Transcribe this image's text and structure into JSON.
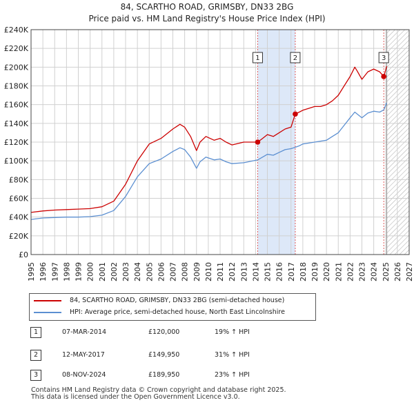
{
  "title_line1": "84, SCARTHO ROAD, GRIMSBY, DN33 2BG",
  "title_line2": "Price paid vs. HM Land Registry's House Price Index (HPI)",
  "legend": {
    "property_label": "84, SCARTHO ROAD, GRIMSBY, DN33 2BG (semi-detached house)",
    "hpi_label": "HPI: Average price, semi-detached house, North East Lincolnshire"
  },
  "sales": [
    {
      "num": "1",
      "date": "07-MAR-2014",
      "price": "£120,000",
      "hpi": "19% ↑ HPI"
    },
    {
      "num": "2",
      "date": "12-MAY-2017",
      "price": "£149,950",
      "hpi": "31% ↑ HPI"
    },
    {
      "num": "3",
      "date": "08-NOV-2024",
      "price": "£189,950",
      "hpi": "23% ↑ HPI"
    }
  ],
  "footer_line1": "Contains HM Land Registry data © Crown copyright and database right 2025.",
  "footer_line2": "This data is licensed under the Open Government Licence v3.0.",
  "colors": {
    "property": "#cc0000",
    "hpi": "#5b8fd1",
    "sale_band": "#dde8f8",
    "grid": "#d0d0d0"
  },
  "chart_data": {
    "type": "line",
    "title": "84, SCARTHO ROAD, GRIMSBY, DN33 2BG — Price paid vs. HM Land Registry's House Price Index (HPI)",
    "xlim": [
      1995,
      2027
    ],
    "ylim": [
      0,
      240000
    ],
    "x_ticks": [
      1995,
      1996,
      1997,
      1998,
      1999,
      2000,
      2001,
      2002,
      2003,
      2004,
      2005,
      2006,
      2007,
      2008,
      2009,
      2010,
      2011,
      2012,
      2013,
      2014,
      2015,
      2016,
      2017,
      2018,
      2019,
      2020,
      2021,
      2022,
      2023,
      2024,
      2025,
      2026,
      2027
    ],
    "y_ticks": [
      0,
      20000,
      40000,
      60000,
      80000,
      100000,
      120000,
      140000,
      160000,
      180000,
      200000,
      220000,
      240000
    ],
    "y_tick_labels": [
      "£0",
      "£20K",
      "£40K",
      "£60K",
      "£80K",
      "£100K",
      "£120K",
      "£140K",
      "£160K",
      "£180K",
      "£200K",
      "£220K",
      "£240K"
    ],
    "forecast_start": 2025.1,
    "sale_band": [
      2014.18,
      2017.36
    ],
    "markers": [
      {
        "label": "1",
        "x": 2014.18,
        "y": 120000
      },
      {
        "label": "2",
        "x": 2017.36,
        "y": 149950
      },
      {
        "label": "3",
        "x": 2024.85,
        "y": 189950
      }
    ],
    "series": [
      {
        "name": "84, SCARTHO ROAD, GRIMSBY, DN33 2BG (semi-detached house)",
        "x": [
          1995,
          1996,
          1997,
          1998,
          1999,
          2000,
          2001,
          2002,
          2003,
          2004,
          2005,
          2006,
          2007,
          2007.6,
          2008,
          2008.5,
          2009,
          2009.3,
          2009.8,
          2010.5,
          2011,
          2011.5,
          2012,
          2013,
          2014.18,
          2014.6,
          2015,
          2015.5,
          2016,
          2016.5,
          2017,
          2017.36,
          2017.7,
          2018,
          2018.5,
          2019,
          2019.5,
          2020,
          2020.5,
          2021,
          2021.5,
          2022,
          2022.4,
          2022.6,
          2023,
          2023.5,
          2024,
          2024.5,
          2024.85,
          2025.1
        ],
        "y": [
          45000,
          46500,
          47500,
          48000,
          48500,
          49000,
          51000,
          57000,
          75000,
          100000,
          118000,
          124000,
          134000,
          139000,
          136000,
          126000,
          111000,
          120000,
          126000,
          122000,
          124000,
          120000,
          117000,
          120000,
          120000,
          124000,
          128000,
          126000,
          130000,
          134000,
          136000,
          149950,
          152000,
          154000,
          156000,
          158000,
          158000,
          160000,
          164000,
          170000,
          180000,
          190000,
          200000,
          196000,
          187000,
          195000,
          198000,
          195000,
          189950,
          201000
        ]
      },
      {
        "name": "HPI: Average price, semi-detached house, North East Lincolnshire",
        "x": [
          1995,
          1996,
          1997,
          1998,
          1999,
          2000,
          2001,
          2002,
          2003,
          2004,
          2005,
          2006,
          2007,
          2007.6,
          2008,
          2008.5,
          2009,
          2009.3,
          2009.8,
          2010.5,
          2011,
          2011.5,
          2012,
          2013,
          2014.18,
          2014.6,
          2015,
          2015.5,
          2016,
          2016.5,
          2017,
          2017.36,
          2017.7,
          2018,
          2018.5,
          2019,
          2019.5,
          2020,
          2020.5,
          2021,
          2021.5,
          2022,
          2022.4,
          2022.6,
          2023,
          2023.5,
          2024,
          2024.5,
          2024.85,
          2025.1
        ],
        "y": [
          37500,
          39000,
          39500,
          40000,
          40000,
          40500,
          42000,
          47000,
          62000,
          83000,
          97000,
          102000,
          110000,
          114000,
          112000,
          104000,
          92000,
          99000,
          104000,
          101000,
          102000,
          99000,
          97000,
          98000,
          101000,
          104000,
          107000,
          106000,
          109000,
          112000,
          113000,
          114500,
          116000,
          118000,
          119000,
          120000,
          121000,
          122000,
          126000,
          130000,
          138000,
          146000,
          152000,
          150000,
          146000,
          151000,
          153000,
          152000,
          154400,
          162000
        ]
      }
    ]
  }
}
